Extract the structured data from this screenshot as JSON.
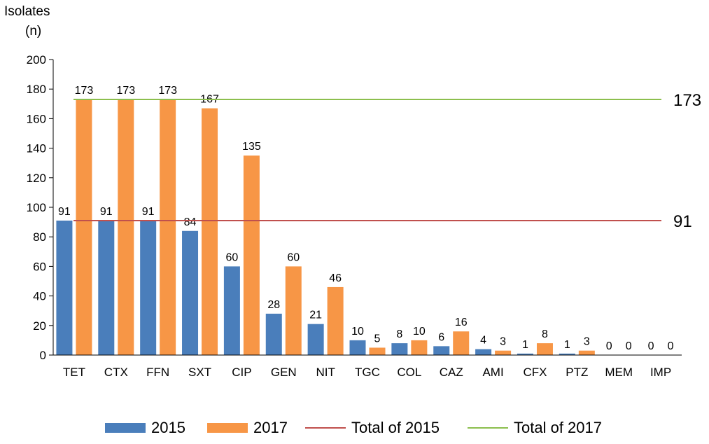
{
  "chart_data": {
    "type": "bar",
    "ylabel": [
      "Isolates",
      "(n)"
    ],
    "ylim": [
      0,
      200
    ],
    "yticks": [
      0,
      20,
      40,
      60,
      80,
      100,
      120,
      140,
      160,
      180,
      200
    ],
    "categories": [
      "TET",
      "CTX",
      "FFN",
      "SXT",
      "CIP",
      "GEN",
      "NIT",
      "TGC",
      "COL",
      "CAZ",
      "AMI",
      "CFX",
      "PTZ",
      "MEM",
      "IMP"
    ],
    "series": [
      {
        "name": "2015",
        "color": "#4a7ebb",
        "values": [
          91,
          91,
          91,
          84,
          60,
          28,
          21,
          10,
          8,
          6,
          4,
          1,
          1,
          0,
          0
        ]
      },
      {
        "name": "2017",
        "color": "#f79646",
        "values": [
          173,
          173,
          173,
          167,
          135,
          60,
          46,
          5,
          10,
          16,
          3,
          8,
          3,
          0,
          0
        ]
      }
    ],
    "reference_lines": [
      {
        "name": "Total of 2015",
        "value": 91,
        "label": "91",
        "color": "#c0504d"
      },
      {
        "name": "Total of 2017",
        "value": 173,
        "label": "173",
        "color": "#8cbf4e"
      }
    ]
  }
}
